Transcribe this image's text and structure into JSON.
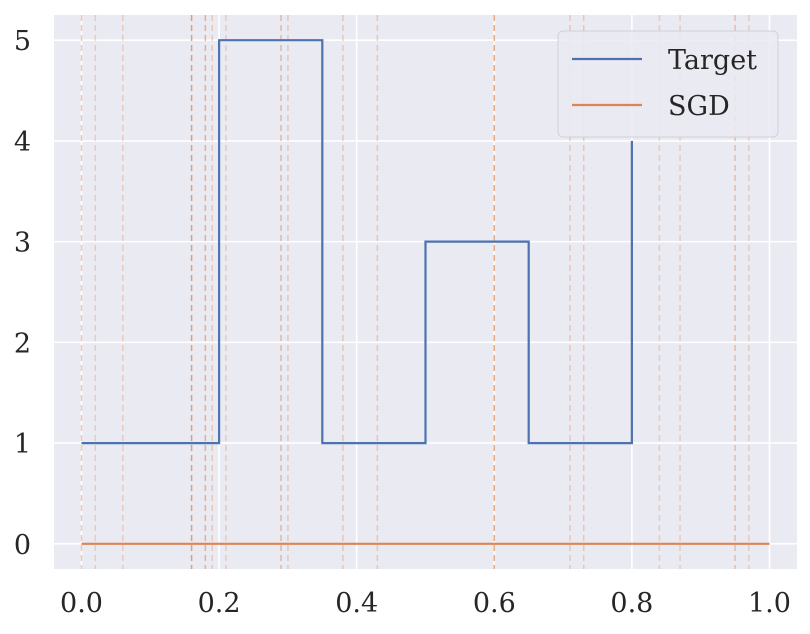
{
  "chart_data": {
    "type": "line",
    "title": "",
    "xlabel": "",
    "ylabel": "",
    "xlim": [
      -0.04,
      1.04
    ],
    "ylim": [
      -0.25,
      5.25
    ],
    "x_ticks": [
      0.0,
      0.2,
      0.4,
      0.6,
      0.8,
      1.0
    ],
    "x_tick_labels": [
      "0.0",
      "0.2",
      "0.4",
      "0.6",
      "0.8",
      "1.0"
    ],
    "y_ticks": [
      0,
      1,
      2,
      3,
      4,
      5
    ],
    "y_tick_labels": [
      "0",
      "1",
      "2",
      "3",
      "4",
      "5"
    ],
    "grid": true,
    "legend": {
      "placement": "top-right",
      "entries": [
        "Target",
        "SGD"
      ]
    },
    "series": [
      {
        "name": "Target",
        "color": "#4c72b0",
        "step": true,
        "x": [
          0.0,
          0.2,
          0.2,
          0.35,
          0.35,
          0.5,
          0.5,
          0.65,
          0.65,
          0.8,
          0.8
        ],
        "y": [
          1,
          1,
          5,
          5,
          1,
          1,
          3,
          3,
          1,
          1,
          4
        ]
      },
      {
        "name": "SGD",
        "color": "#dd8452",
        "x": [
          0.0,
          1.0
        ],
        "y": [
          0,
          0
        ]
      }
    ],
    "vertical_lines": {
      "color": "#dd8452",
      "style": "dashed",
      "x": [
        0.0,
        0.02,
        0.06,
        0.16,
        0.18,
        0.19,
        0.21,
        0.29,
        0.3,
        0.38,
        0.43,
        0.6,
        0.71,
        0.73,
        0.84,
        0.87,
        0.95,
        0.97
      ],
      "alpha": [
        0.45,
        0.3,
        0.3,
        0.75,
        0.6,
        0.35,
        0.3,
        0.5,
        0.35,
        0.35,
        0.35,
        0.7,
        0.35,
        0.35,
        0.3,
        0.3,
        0.45,
        0.3
      ]
    }
  }
}
